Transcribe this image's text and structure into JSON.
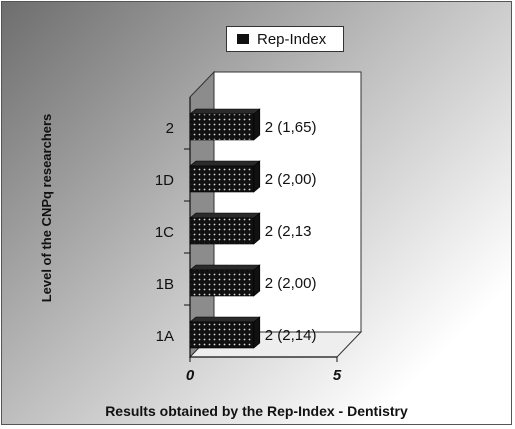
{
  "chart_data": {
    "type": "bar",
    "orientation": "horizontal",
    "three_d": true,
    "categories": [
      "2",
      "1D",
      "1C",
      "1B",
      "1A"
    ],
    "series": [
      {
        "name": "Rep-Index",
        "values": [
          2,
          2,
          2,
          2,
          2
        ],
        "data_labels": [
          "2  (1,65)",
          "2  (2,00)",
          "2  (2,13",
          "2  (2,00)",
          "2  (2,14)"
        ]
      }
    ],
    "xlim": [
      0,
      5
    ],
    "xticks": [
      "0",
      "5"
    ],
    "xlabel": "Results obtained by the Rep-Index - Dentistry",
    "ylabel": "Level of the CNPq researchers",
    "legend_position": "top",
    "grid": false,
    "colors": {
      "bar": "#111111",
      "back_wall": "#ffffff",
      "side_wall": "#8c8c8c",
      "floor": "#e8e8e8"
    }
  }
}
